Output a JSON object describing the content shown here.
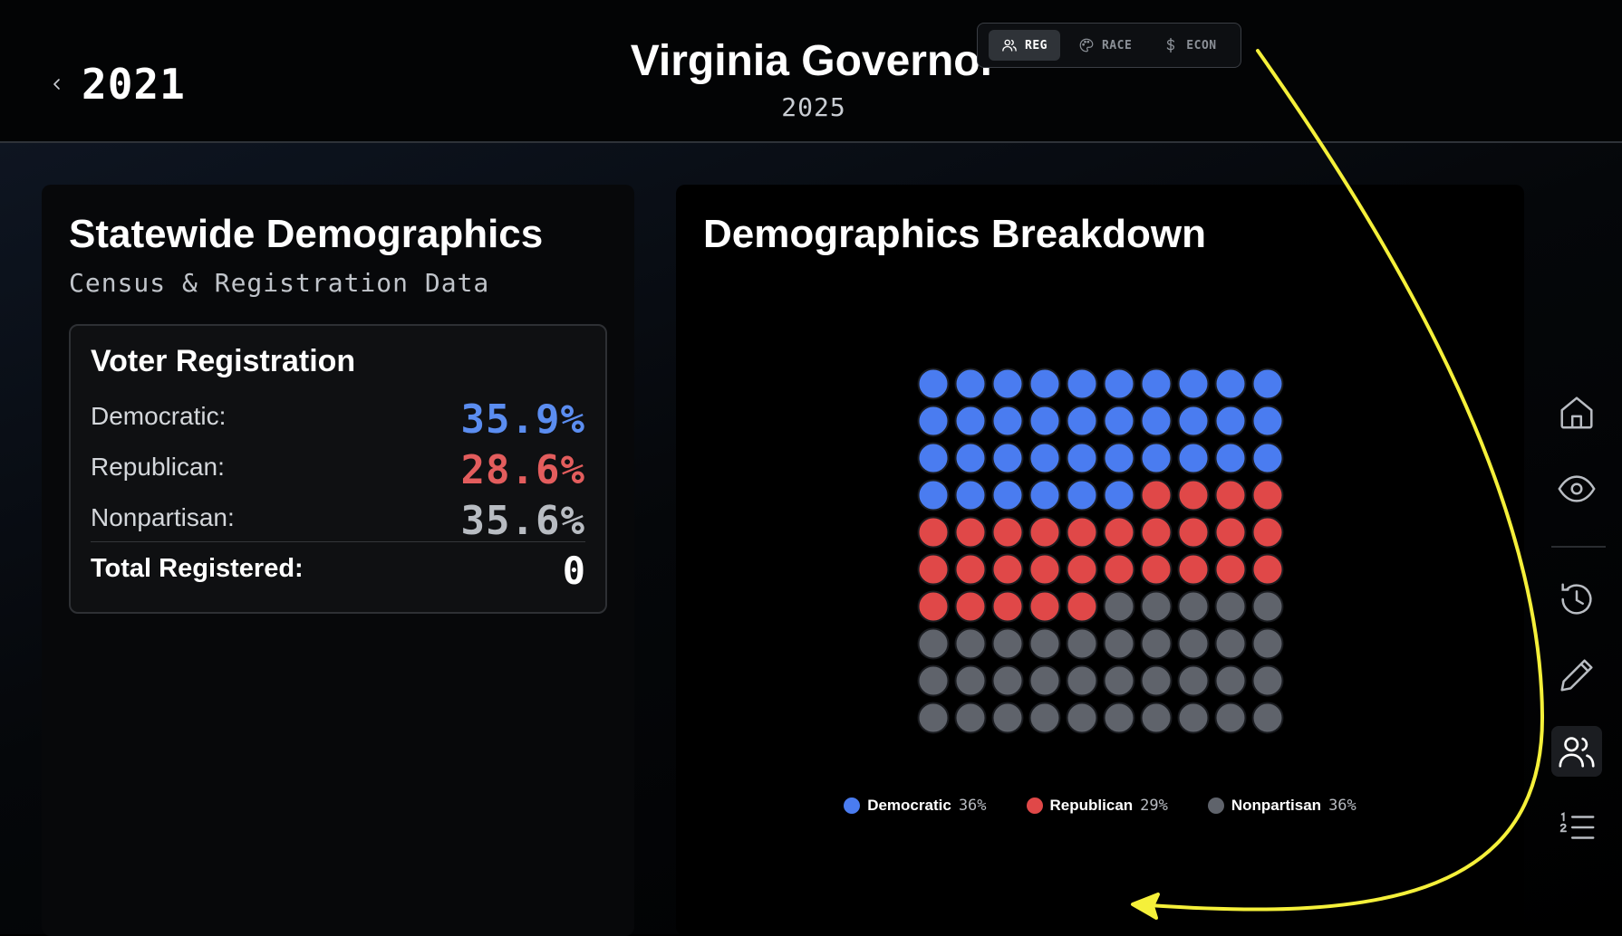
{
  "header": {
    "back_year": "2021",
    "title": "Virginia Governor",
    "subtitle": "2025",
    "modes": [
      {
        "label": "REG",
        "icon": "users-icon",
        "active": true
      },
      {
        "label": "RACE",
        "icon": "palette-icon",
        "active": false
      },
      {
        "label": "ECON",
        "icon": "dollar-icon",
        "active": false
      }
    ]
  },
  "left_card": {
    "title": "Statewide Demographics",
    "subtitle": "Census & Registration Data",
    "registration": {
      "title": "Voter Registration",
      "rows": [
        {
          "label": "Democratic:",
          "value": "35.9%",
          "color": "#5b8df0"
        },
        {
          "label": "Republican:",
          "value": "28.6%",
          "color": "#e35d5d"
        },
        {
          "label": "Nonpartisan:",
          "value": "35.6%",
          "color": "#b8bcc2"
        }
      ],
      "total_label": "Total Registered:",
      "total_value": "0"
    }
  },
  "right_card": {
    "title": "Demographics Breakdown",
    "legend": [
      {
        "name": "Democratic",
        "pct": "36%",
        "color": "#4a7cf0"
      },
      {
        "name": "Republican",
        "pct": "29%",
        "color": "#e04848"
      },
      {
        "name": "Nonpartisan",
        "pct": "36%",
        "color": "#5f636b"
      }
    ]
  },
  "chart_data": {
    "type": "waffle",
    "grid": {
      "rows": 10,
      "cols": 10
    },
    "categories": [
      "Democratic",
      "Republican",
      "Nonpartisan"
    ],
    "values": [
      36,
      29,
      35
    ],
    "colors": [
      "#4a7cf0",
      "#e04848",
      "#5f636b"
    ]
  },
  "sidebar": {
    "items": [
      {
        "icon": "home-icon",
        "active": false
      },
      {
        "icon": "eye-icon",
        "active": false
      },
      {
        "icon": "history-icon",
        "active": false
      },
      {
        "icon": "pencil-icon",
        "active": false
      },
      {
        "icon": "users-icon",
        "active": true
      },
      {
        "icon": "numbered-list-icon",
        "active": false
      }
    ]
  },
  "annotation": {
    "color": "#f5f03a"
  }
}
